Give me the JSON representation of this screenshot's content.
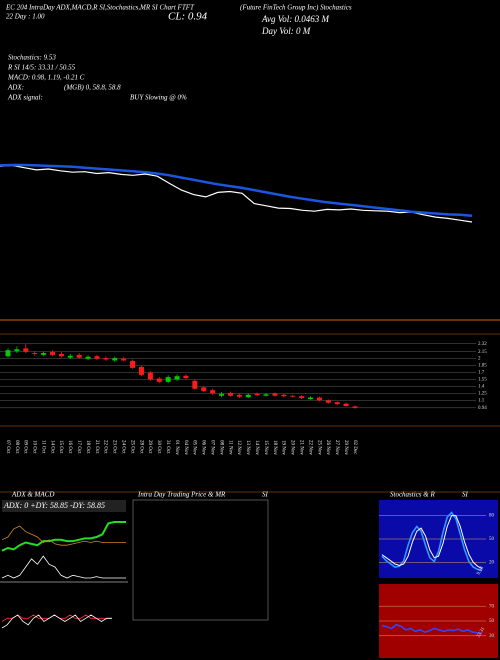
{
  "header": {
    "title": "EC 204 IntraDay ADX,MACD,R SI,Stochastics,MR SI Chart FTFT",
    "company": "(Future FinTech Group Inc) Stochastics",
    "day": "22 Day : 1.00",
    "close": "CL: 0.94",
    "avg_vol": "Avg Vol: 0.0463 M",
    "day_vol": "Day Vol: 0   M",
    "stochastics": "Stochastics: 9.53",
    "rsi": "R  SI 14/5: 33.31 / 50.55",
    "macd": "MACD: 0.98, 1.19, -0.21 C",
    "adx": "ADX:",
    "mgb": "(MGB) 0, 58.8, 58.8",
    "adx_signal": "ADX  signal:",
    "signal": "BUY Slowing @ 0%"
  },
  "chart_data": [
    {
      "type": "candlestick",
      "categories": [
        "07 Oct",
        "08 Oct",
        "09 Oct",
        "10 Oct",
        "11 Oct",
        "14 Oct",
        "15 Oct",
        "16 Oct",
        "17 Oct",
        "18 Oct",
        "21 Oct",
        "22 Oct",
        "23 Oct",
        "24 Oct",
        "25 Oct",
        "28 Oct",
        "29 Oct",
        "30 Oct",
        "31 Oct",
        "01 Nov",
        "04 Nov",
        "05 Nov",
        "06 Nov",
        "07 Nov",
        "08 Nov",
        "11 Nov",
        "12 Nov",
        "13 Nov",
        "14 Nov",
        "15 Nov",
        "18 Nov",
        "19 Nov",
        "20 Nov",
        "21 Nov",
        "22 Nov",
        "25 Nov",
        "26 Nov",
        "27 Nov",
        "29 Nov",
        "02 Dec"
      ],
      "open": [
        2.05,
        2.16,
        2.22,
        2.12,
        2.08,
        2.14,
        2.1,
        2.02,
        2.08,
        2.0,
        2.05,
        2.01,
        1.96,
        2.0,
        1.95,
        1.82,
        1.7,
        1.57,
        1.5,
        1.55,
        1.63,
        1.52,
        1.38,
        1.32,
        1.2,
        1.26,
        1.22,
        1.17,
        1.24,
        1.2,
        1.25,
        1.22,
        1.2,
        1.19,
        1.13,
        1.16,
        1.1,
        1.06,
        1.03,
        0.97
      ],
      "high": [
        2.22,
        2.26,
        2.32,
        2.16,
        2.15,
        2.18,
        2.14,
        2.1,
        2.12,
        2.07,
        2.08,
        2.05,
        2.04,
        2.03,
        1.98,
        1.85,
        1.73,
        1.6,
        1.64,
        1.66,
        1.66,
        1.55,
        1.4,
        1.35,
        1.28,
        1.29,
        1.25,
        1.25,
        1.27,
        1.26,
        1.27,
        1.24,
        1.22,
        1.21,
        1.19,
        1.18,
        1.12,
        1.08,
        1.05,
        0.99
      ],
      "low": [
        2.02,
        2.12,
        2.12,
        2.06,
        2.05,
        2.05,
        2.02,
        1.99,
        2.0,
        1.97,
        1.97,
        1.95,
        1.93,
        1.94,
        1.78,
        1.62,
        1.52,
        1.47,
        1.47,
        1.52,
        1.55,
        1.33,
        1.28,
        1.22,
        1.17,
        1.18,
        1.15,
        1.15,
        1.19,
        1.18,
        1.18,
        1.17,
        1.16,
        1.13,
        1.11,
        1.08,
        1.03,
        1.0,
        0.96,
        0.92
      ],
      "close": [
        2.18,
        2.2,
        2.15,
        2.1,
        2.12,
        2.08,
        2.05,
        2.06,
        2.02,
        2.04,
        2.0,
        1.98,
        2.01,
        1.96,
        1.8,
        1.65,
        1.55,
        1.5,
        1.6,
        1.62,
        1.58,
        1.35,
        1.3,
        1.25,
        1.24,
        1.2,
        1.18,
        1.22,
        1.21,
        1.23,
        1.2,
        1.19,
        1.18,
        1.15,
        1.16,
        1.1,
        1.05,
        1.02,
        0.98,
        0.94
      ],
      "ma": {
        "color": "#1a56e0",
        "values": [
          2.2,
          2.21,
          2.21,
          2.2,
          2.19,
          2.18,
          2.17,
          2.15,
          2.13,
          2.11,
          2.09,
          2.07,
          2.05,
          2.02,
          1.98,
          1.93,
          1.88,
          1.83,
          1.78,
          1.74,
          1.7,
          1.65,
          1.6,
          1.55,
          1.5,
          1.46,
          1.42,
          1.38,
          1.35,
          1.32,
          1.29,
          1.26,
          1.23,
          1.2,
          1.17,
          1.15,
          1.13,
          1.11,
          1.1,
          1.08
        ]
      },
      "up_color": "#00cc00",
      "down_color": "#ff1a1a",
      "ylim": [
        0.85,
        2.4
      ],
      "yticks": [
        0.94,
        1.1,
        1.25,
        1.4,
        1.55,
        1.7,
        1.85,
        2,
        2.15,
        2.32
      ]
    },
    {
      "type": "adx",
      "title": "ADX  & MACD",
      "legend": "ADX: 0  +DY: 58.85  -DY: 58.85",
      "series": [
        {
          "color": "#22dd22",
          "values": [
            40,
            42,
            41,
            44,
            46,
            45,
            44,
            47,
            47,
            48,
            48,
            47,
            47,
            48,
            49,
            49,
            50,
            52,
            60,
            61,
            61,
            61
          ]
        },
        {
          "color": "#cc8822",
          "values": [
            48,
            50,
            56,
            58,
            54,
            52,
            50,
            46,
            48,
            45,
            44,
            44,
            45,
            46,
            47,
            46,
            47,
            46,
            46,
            46,
            46,
            46
          ]
        },
        {
          "color": "#ffffff",
          "values": [
            20,
            22,
            20,
            22,
            28,
            34,
            30,
            36,
            30,
            28,
            22,
            20,
            22,
            21,
            20,
            20,
            21,
            20,
            20,
            20,
            20,
            20
          ]
        }
      ],
      "macd": [
        {
          "color": "#ff3333",
          "values": [
            0,
            0.01,
            0.01,
            0.02,
            0.01,
            0.01,
            0.02,
            0.01,
            0.01,
            0.01,
            0.02,
            0.01,
            0.01,
            0.02,
            0.01,
            0.01,
            0.02,
            0.01,
            0.01,
            0.01,
            0.01,
            0.01
          ]
        },
        {
          "color": "#ffffff",
          "values": [
            -0.02,
            -0.01,
            0.01,
            0.02,
            0,
            -0.01,
            0.01,
            0.02,
            0,
            0.01,
            0.02,
            0.01,
            0,
            0.01,
            0.02,
            0,
            0.01,
            0.02,
            0.01,
            0,
            0.01,
            0.01
          ]
        }
      ]
    },
    {
      "type": "box",
      "title": "Intra  Day Trading Price  & MR",
      "title2": "SI"
    },
    {
      "type": "oscillator",
      "title": "Stochastics & R",
      "title2": "SI",
      "background": "#0a0aa8",
      "ylim": [
        0,
        100
      ],
      "yticks": [
        20,
        50,
        80
      ],
      "series": [
        {
          "color": "#3399ff",
          "values": [
            28,
            22,
            18,
            14,
            15,
            22,
            42,
            58,
            66,
            60,
            42,
            26,
            21,
            34,
            58,
            78,
            84,
            76,
            56,
            36,
            21,
            14,
            11,
            9.53
          ]
        },
        {
          "color": "#ffffff",
          "values": [
            30,
            26,
            22,
            18,
            16,
            18,
            28,
            46,
            60,
            64,
            54,
            36,
            26,
            28,
            44,
            66,
            80,
            80,
            66,
            46,
            30,
            20,
            15,
            12
          ]
        }
      ]
    },
    {
      "type": "oscillator",
      "background": "#a00000",
      "ylim": [
        0,
        100
      ],
      "yticks": [
        30,
        50,
        70
      ],
      "series": [
        {
          "color": "#3344ff",
          "values": [
            44,
            42,
            40,
            45,
            43,
            38,
            40,
            36,
            38,
            35,
            37,
            40,
            38,
            36,
            38,
            37,
            39,
            36,
            38,
            35,
            34,
            33.31
          ]
        }
      ]
    }
  ]
}
